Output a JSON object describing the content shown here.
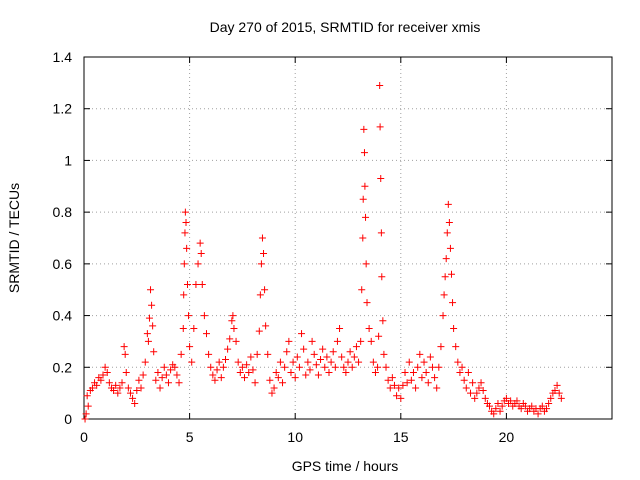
{
  "chart_data": {
    "type": "scatter",
    "title": "Day 270 of 2015, SRMTID for receiver xmis",
    "xlabel": "GPS time / hours",
    "ylabel": "SRMTID / TECUs",
    "xlim": [
      0,
      25
    ],
    "ylim": [
      0,
      1.4
    ],
    "xticks": [
      0,
      5,
      10,
      15,
      20
    ],
    "xtick_labels": [
      "0",
      "5",
      "10",
      "15",
      "20"
    ],
    "yticks": [
      0,
      0.2,
      0.4,
      0.6,
      0.8,
      1.0,
      1.2,
      1.4
    ],
    "ytick_labels": [
      "0",
      "0.2",
      "0.4",
      "0.6",
      "0.8",
      "1",
      "1.2",
      "1.4"
    ],
    "grid": true,
    "marker": "+",
    "color": "#ff0000",
    "series": [
      {
        "name": "SRMTID",
        "points": [
          [
            0.05,
            0.0
          ],
          [
            0.1,
            0.02
          ],
          [
            0.15,
            0.09
          ],
          [
            0.2,
            0.05
          ],
          [
            0.3,
            0.11
          ],
          [
            0.4,
            0.12
          ],
          [
            0.5,
            0.14
          ],
          [
            0.6,
            0.13
          ],
          [
            0.7,
            0.16
          ],
          [
            0.8,
            0.15
          ],
          [
            0.9,
            0.17
          ],
          [
            1.0,
            0.2
          ],
          [
            1.1,
            0.18
          ],
          [
            1.2,
            0.14
          ],
          [
            1.3,
            0.12
          ],
          [
            1.4,
            0.11
          ],
          [
            1.5,
            0.13
          ],
          [
            1.6,
            0.1
          ],
          [
            1.7,
            0.12
          ],
          [
            1.8,
            0.14
          ],
          [
            1.9,
            0.28
          ],
          [
            1.95,
            0.25
          ],
          [
            2.0,
            0.18
          ],
          [
            2.1,
            0.12
          ],
          [
            2.2,
            0.1
          ],
          [
            2.3,
            0.08
          ],
          [
            2.4,
            0.06
          ],
          [
            2.5,
            0.11
          ],
          [
            2.6,
            0.15
          ],
          [
            2.7,
            0.12
          ],
          [
            2.8,
            0.17
          ],
          [
            2.9,
            0.22
          ],
          [
            3.0,
            0.33
          ],
          [
            3.05,
            0.3
          ],
          [
            3.1,
            0.39
          ],
          [
            3.15,
            0.5
          ],
          [
            3.2,
            0.44
          ],
          [
            3.25,
            0.36
          ],
          [
            3.3,
            0.26
          ],
          [
            3.4,
            0.15
          ],
          [
            3.5,
            0.18
          ],
          [
            3.6,
            0.12
          ],
          [
            3.7,
            0.16
          ],
          [
            3.8,
            0.2
          ],
          [
            3.9,
            0.17
          ],
          [
            4.0,
            0.14
          ],
          [
            4.1,
            0.19
          ],
          [
            4.2,
            0.21
          ],
          [
            4.3,
            0.2
          ],
          [
            4.4,
            0.17
          ],
          [
            4.5,
            0.14
          ],
          [
            4.6,
            0.25
          ],
          [
            4.7,
            0.35
          ],
          [
            4.72,
            0.48
          ],
          [
            4.75,
            0.6
          ],
          [
            4.78,
            0.72
          ],
          [
            4.8,
            0.8
          ],
          [
            4.83,
            0.76
          ],
          [
            4.86,
            0.66
          ],
          [
            4.9,
            0.52
          ],
          [
            4.95,
            0.4
          ],
          [
            5.0,
            0.28
          ],
          [
            5.1,
            0.22
          ],
          [
            5.2,
            0.35
          ],
          [
            5.3,
            0.52
          ],
          [
            5.4,
            0.6
          ],
          [
            5.5,
            0.68
          ],
          [
            5.55,
            0.64
          ],
          [
            5.6,
            0.52
          ],
          [
            5.7,
            0.4
          ],
          [
            5.8,
            0.33
          ],
          [
            5.9,
            0.25
          ],
          [
            6.0,
            0.2
          ],
          [
            6.1,
            0.17
          ],
          [
            6.2,
            0.15
          ],
          [
            6.3,
            0.19
          ],
          [
            6.4,
            0.22
          ],
          [
            6.5,
            0.16
          ],
          [
            6.6,
            0.2
          ],
          [
            6.7,
            0.23
          ],
          [
            6.8,
            0.27
          ],
          [
            6.9,
            0.31
          ],
          [
            7.0,
            0.38
          ],
          [
            7.05,
            0.4
          ],
          [
            7.1,
            0.35
          ],
          [
            7.2,
            0.3
          ],
          [
            7.3,
            0.22
          ],
          [
            7.4,
            0.18
          ],
          [
            7.5,
            0.2
          ],
          [
            7.6,
            0.16
          ],
          [
            7.7,
            0.21
          ],
          [
            7.8,
            0.18
          ],
          [
            7.9,
            0.24
          ],
          [
            8.0,
            0.19
          ],
          [
            8.1,
            0.14
          ],
          [
            8.2,
            0.25
          ],
          [
            8.3,
            0.34
          ],
          [
            8.35,
            0.48
          ],
          [
            8.4,
            0.6
          ],
          [
            8.45,
            0.7
          ],
          [
            8.5,
            0.64
          ],
          [
            8.55,
            0.5
          ],
          [
            8.6,
            0.36
          ],
          [
            8.7,
            0.25
          ],
          [
            8.8,
            0.15
          ],
          [
            8.9,
            0.1
          ],
          [
            9.0,
            0.12
          ],
          [
            9.1,
            0.18
          ],
          [
            9.2,
            0.16
          ],
          [
            9.3,
            0.22
          ],
          [
            9.4,
            0.14
          ],
          [
            9.5,
            0.2
          ],
          [
            9.6,
            0.26
          ],
          [
            9.7,
            0.3
          ],
          [
            9.8,
            0.18
          ],
          [
            9.9,
            0.22
          ],
          [
            10.0,
            0.16
          ],
          [
            10.1,
            0.24
          ],
          [
            10.2,
            0.2
          ],
          [
            10.3,
            0.33
          ],
          [
            10.4,
            0.27
          ],
          [
            10.5,
            0.17
          ],
          [
            10.6,
            0.22
          ],
          [
            10.7,
            0.19
          ],
          [
            10.8,
            0.3
          ],
          [
            10.9,
            0.25
          ],
          [
            11.0,
            0.21
          ],
          [
            11.1,
            0.17
          ],
          [
            11.2,
            0.23
          ],
          [
            11.3,
            0.27
          ],
          [
            11.4,
            0.2
          ],
          [
            11.5,
            0.24
          ],
          [
            11.6,
            0.18
          ],
          [
            11.7,
            0.22
          ],
          [
            11.8,
            0.26
          ],
          [
            11.9,
            0.2
          ],
          [
            12.0,
            0.3
          ],
          [
            12.1,
            0.35
          ],
          [
            12.2,
            0.24
          ],
          [
            12.3,
            0.2
          ],
          [
            12.4,
            0.18
          ],
          [
            12.5,
            0.22
          ],
          [
            12.6,
            0.26
          ],
          [
            12.7,
            0.2
          ],
          [
            12.8,
            0.24
          ],
          [
            12.9,
            0.28
          ],
          [
            13.0,
            0.22
          ],
          [
            13.1,
            0.3
          ],
          [
            13.15,
            0.5
          ],
          [
            13.2,
            0.7
          ],
          [
            13.22,
            0.85
          ],
          [
            13.25,
            1.12
          ],
          [
            13.28,
            1.03
          ],
          [
            13.3,
            0.9
          ],
          [
            13.33,
            0.78
          ],
          [
            13.36,
            0.6
          ],
          [
            13.4,
            0.45
          ],
          [
            13.5,
            0.35
          ],
          [
            13.6,
            0.3
          ],
          [
            13.7,
            0.22
          ],
          [
            13.8,
            0.18
          ],
          [
            13.9,
            0.2
          ],
          [
            13.95,
            0.32
          ],
          [
            14.0,
            1.29
          ],
          [
            14.02,
            1.13
          ],
          [
            14.05,
            0.93
          ],
          [
            14.08,
            0.72
          ],
          [
            14.1,
            0.55
          ],
          [
            14.15,
            0.38
          ],
          [
            14.2,
            0.25
          ],
          [
            14.3,
            0.2
          ],
          [
            14.4,
            0.15
          ],
          [
            14.5,
            0.12
          ],
          [
            14.6,
            0.16
          ],
          [
            14.7,
            0.13
          ],
          [
            14.8,
            0.09
          ],
          [
            14.9,
            0.12
          ],
          [
            15.0,
            0.08
          ],
          [
            15.1,
            0.13
          ],
          [
            15.2,
            0.18
          ],
          [
            15.3,
            0.14
          ],
          [
            15.4,
            0.22
          ],
          [
            15.5,
            0.15
          ],
          [
            15.6,
            0.18
          ],
          [
            15.7,
            0.12
          ],
          [
            15.8,
            0.2
          ],
          [
            15.9,
            0.25
          ],
          [
            16.0,
            0.16
          ],
          [
            16.1,
            0.22
          ],
          [
            16.2,
            0.18
          ],
          [
            16.3,
            0.14
          ],
          [
            16.4,
            0.24
          ],
          [
            16.5,
            0.2
          ],
          [
            16.6,
            0.16
          ],
          [
            16.7,
            0.12
          ],
          [
            16.8,
            0.2
          ],
          [
            16.9,
            0.28
          ],
          [
            17.0,
            0.4
          ],
          [
            17.05,
            0.48
          ],
          [
            17.1,
            0.55
          ],
          [
            17.15,
            0.62
          ],
          [
            17.2,
            0.72
          ],
          [
            17.25,
            0.83
          ],
          [
            17.3,
            0.76
          ],
          [
            17.35,
            0.66
          ],
          [
            17.4,
            0.56
          ],
          [
            17.45,
            0.45
          ],
          [
            17.5,
            0.35
          ],
          [
            17.6,
            0.28
          ],
          [
            17.7,
            0.22
          ],
          [
            17.8,
            0.18
          ],
          [
            17.9,
            0.2
          ],
          [
            18.0,
            0.15
          ],
          [
            18.1,
            0.12
          ],
          [
            18.2,
            0.18
          ],
          [
            18.3,
            0.1
          ],
          [
            18.4,
            0.14
          ],
          [
            18.5,
            0.08
          ],
          [
            18.6,
            0.1
          ],
          [
            18.7,
            0.12
          ],
          [
            18.8,
            0.14
          ],
          [
            18.9,
            0.11
          ],
          [
            19.0,
            0.08
          ],
          [
            19.1,
            0.06
          ],
          [
            19.2,
            0.05
          ],
          [
            19.3,
            0.03
          ],
          [
            19.4,
            0.02
          ],
          [
            19.5,
            0.04
          ],
          [
            19.6,
            0.06
          ],
          [
            19.7,
            0.03
          ],
          [
            19.8,
            0.05
          ],
          [
            19.9,
            0.07
          ],
          [
            20.0,
            0.08
          ],
          [
            20.1,
            0.06
          ],
          [
            20.2,
            0.07
          ],
          [
            20.3,
            0.05
          ],
          [
            20.4,
            0.06
          ],
          [
            20.5,
            0.07
          ],
          [
            20.6,
            0.05
          ],
          [
            20.7,
            0.04
          ],
          [
            20.8,
            0.06
          ],
          [
            20.9,
            0.05
          ],
          [
            21.0,
            0.03
          ],
          [
            21.1,
            0.04
          ],
          [
            21.2,
            0.05
          ],
          [
            21.3,
            0.03
          ],
          [
            21.4,
            0.04
          ],
          [
            21.5,
            0.02
          ],
          [
            21.6,
            0.04
          ],
          [
            21.7,
            0.05
          ],
          [
            21.8,
            0.03
          ],
          [
            21.9,
            0.04
          ],
          [
            22.0,
            0.06
          ],
          [
            22.1,
            0.08
          ],
          [
            22.2,
            0.1
          ],
          [
            22.3,
            0.11
          ],
          [
            22.4,
            0.13
          ],
          [
            22.5,
            0.1
          ],
          [
            22.6,
            0.08
          ]
        ]
      }
    ]
  }
}
